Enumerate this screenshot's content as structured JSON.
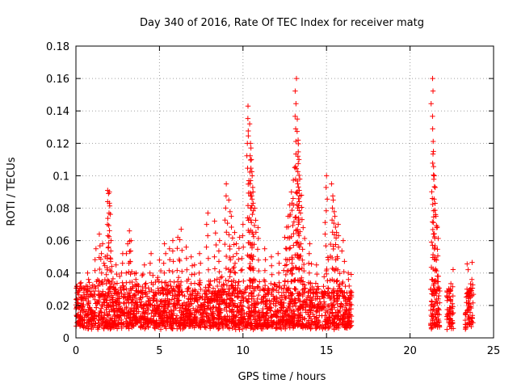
{
  "chart_data": {
    "type": "scatter",
    "title": "Day 340 of 2016, Rate Of TEC Index for receiver matg",
    "xlabel": "GPS time / hours",
    "ylabel": "ROTI / TECUs",
    "xlim": [
      0,
      25
    ],
    "ylim": [
      0,
      0.18
    ],
    "x_ticks": [
      "0",
      "5",
      "10",
      "15",
      "20",
      "25"
    ],
    "y_ticks": [
      "0",
      "0.02",
      "0.04",
      "0.06",
      "0.08",
      "0.1",
      "0.12",
      "0.14",
      "0.16",
      "0.18"
    ],
    "grid": true,
    "marker": "+",
    "color": "#ff0000",
    "background_band": {
      "segments": [
        [
          0.0,
          16.5
        ],
        [
          21.2,
          21.8
        ],
        [
          22.2,
          22.6
        ],
        [
          23.3,
          23.8
        ]
      ],
      "y_range": [
        0.005,
        0.03
      ]
    },
    "series": [
      {
        "x": [
          0.3,
          0.7,
          1.2,
          1.4,
          1.6,
          1.75,
          1.9,
          1.95,
          2.0,
          2.1,
          2.4,
          2.8,
          3.1,
          3.2,
          3.3,
          3.6,
          4.1,
          4.5,
          5.0,
          5.3,
          5.6,
          5.8,
          6.1,
          6.3,
          6.6,
          6.9,
          7.1,
          7.4,
          7.9,
          8.3,
          8.6,
          9.0,
          9.15,
          9.3,
          9.5,
          9.6,
          9.8,
          10.0,
          10.3,
          10.4,
          10.45,
          10.5,
          10.55,
          10.6,
          10.7,
          10.9,
          11.3,
          11.7,
          12.1,
          12.5,
          12.7,
          12.8,
          12.9,
          13.0,
          13.1,
          13.2,
          13.25,
          13.3,
          13.35,
          13.4,
          13.5,
          13.6,
          14.0,
          14.4,
          15.0,
          15.3,
          15.4,
          15.5,
          15.6,
          15.7,
          16.0,
          16.3,
          21.35,
          21.4,
          21.45,
          21.5,
          21.55,
          21.6,
          21.7,
          22.4,
          23.5,
          23.7
        ],
        "y": [
          0.034,
          0.04,
          0.055,
          0.064,
          0.058,
          0.05,
          0.091,
          0.089,
          0.09,
          0.06,
          0.045,
          0.052,
          0.058,
          0.066,
          0.06,
          0.04,
          0.045,
          0.052,
          0.048,
          0.058,
          0.055,
          0.06,
          0.062,
          0.067,
          0.056,
          0.05,
          0.045,
          0.052,
          0.077,
          0.072,
          0.06,
          0.095,
          0.085,
          0.075,
          0.065,
          0.058,
          0.062,
          0.07,
          0.143,
          0.132,
          0.12,
          0.11,
          0.1,
          0.09,
          0.08,
          0.068,
          0.055,
          0.05,
          0.052,
          0.062,
          0.075,
          0.082,
          0.09,
          0.086,
          0.105,
          0.16,
          0.135,
          0.122,
          0.11,
          0.098,
          0.088,
          0.068,
          0.058,
          0.045,
          0.1,
          0.095,
          0.085,
          0.075,
          0.065,
          0.07,
          0.06,
          0.04,
          0.16,
          0.115,
          0.1,
          0.083,
          0.075,
          0.068,
          0.038,
          0.03,
          0.028,
          0.036
        ]
      }
    ]
  }
}
